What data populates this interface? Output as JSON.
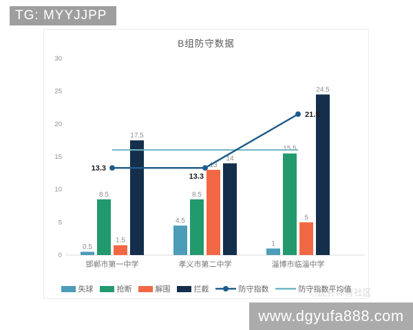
{
  "watermarks": {
    "top_left": "TG: MYYJJPP",
    "bottom_right": "www.dgyufa888.com",
    "community": "◎虎扑体育社区"
  },
  "chart_data": {
    "type": "bar",
    "overlay": "line",
    "title": "B组防守数据",
    "categories": [
      "邯郸市第一中学",
      "孝义市第二中学",
      "淄博市临淄中学"
    ],
    "bar_series": [
      {
        "name": "失球",
        "color": "#4d9cb8",
        "values": [
          0.5,
          4.5,
          1
        ]
      },
      {
        "name": "抢断",
        "color": "#23996e",
        "values": [
          8.5,
          8.5,
          15.5
        ]
      },
      {
        "name": "解围",
        "color": "#f26845",
        "values": [
          1.5,
          13,
          5
        ]
      },
      {
        "name": "拦截",
        "color": "#142e4b",
        "values": [
          17.5,
          14,
          24.5
        ]
      }
    ],
    "line_series": [
      {
        "name": "防守指数",
        "color": "#1f5c8b",
        "values": [
          13.3,
          13.3,
          21.5
        ],
        "marker": true,
        "bold_labels": true,
        "label_placements": [
          "left",
          "below",
          "right"
        ]
      },
      {
        "name": "防守指数平均值",
        "color": "#6cb5c2",
        "value": 16.03,
        "marker": false,
        "show_labels": false
      }
    ],
    "ylim": [
      0,
      30
    ],
    "yticks": [
      0,
      5,
      10,
      15,
      20,
      25,
      30
    ],
    "grid": false,
    "legend_position": "bottom"
  }
}
